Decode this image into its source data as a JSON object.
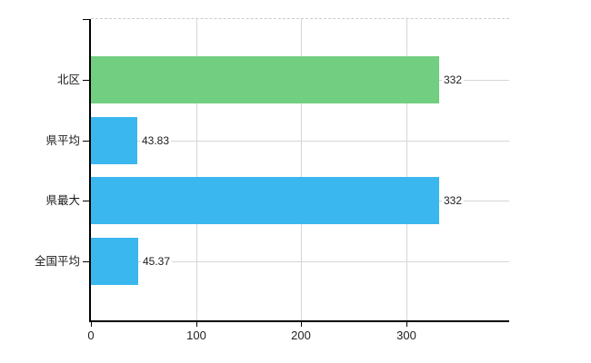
{
  "chart_data": {
    "type": "bar",
    "orientation": "horizontal",
    "title": "",
    "xlabel": "",
    "ylabel": "",
    "categories": [
      "北区",
      "県平均",
      "県最大",
      "全国平均"
    ],
    "values": [
      332,
      43.83,
      332,
      45.37
    ],
    "value_labels": [
      "332",
      "43.83",
      "332",
      "45.37"
    ],
    "bar_colors": [
      "#72ce80",
      "#3ab7ee",
      "#3ab7ee",
      "#3ab7ee"
    ],
    "x_ticks": [
      0,
      100,
      200,
      300
    ],
    "x_tick_labels": [
      "0",
      "100",
      "200",
      "300"
    ],
    "xlim": [
      0,
      398
    ],
    "grid": true,
    "legend": false,
    "colors": {
      "green_bar": "#72ce80",
      "blue_bar": "#3ab7ee",
      "axis": "#000000",
      "gridline": "#d6d6d6",
      "plot_top_border": "#cccccc",
      "label_text": "#1a1a1a",
      "background": "#ffffff"
    }
  }
}
